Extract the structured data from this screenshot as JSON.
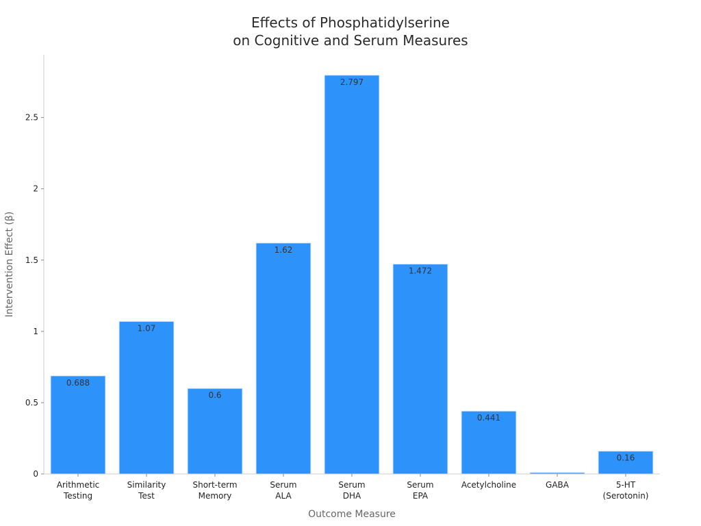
{
  "chart_data": {
    "type": "bar",
    "title": [
      "Effects of Phosphatidylserine",
      "on Cognitive and Serum Measures"
    ],
    "xlabel": "Outcome Measure",
    "ylabel": "Intervention Effect (β)",
    "categories": [
      [
        "Arithmetic",
        "Testing"
      ],
      [
        "Similarity",
        "Test"
      ],
      [
        "Short-term",
        "Memory"
      ],
      [
        "Serum",
        "ALA"
      ],
      [
        "Serum",
        "DHA"
      ],
      [
        "Serum",
        "EPA"
      ],
      [
        "Acetylcholine"
      ],
      [
        "GABA"
      ],
      [
        "5-HT",
        "(Serotonin)"
      ]
    ],
    "values": [
      0.688,
      1.07,
      0.6,
      1.62,
      2.797,
      1.472,
      0.441,
      0.01,
      0.16
    ],
    "data_labels": [
      "0.688",
      "1.07",
      "0.6",
      "1.62",
      "2.797",
      "1.472",
      "0.441",
      "",
      "0.16"
    ],
    "yticks": [
      0,
      0.5,
      1,
      1.5,
      2,
      2.5
    ],
    "ytick_labels": [
      "0",
      "0.5",
      "1",
      "1.5",
      "2",
      "2.5"
    ],
    "ylim": [
      0,
      2.94
    ],
    "grid": false,
    "colors": {
      "bar": "#2e92fb",
      "bar_edge": "#d8e8f8",
      "axis": "#cccccc",
      "tick_text": "#222222",
      "axis_title": "#666666"
    }
  }
}
